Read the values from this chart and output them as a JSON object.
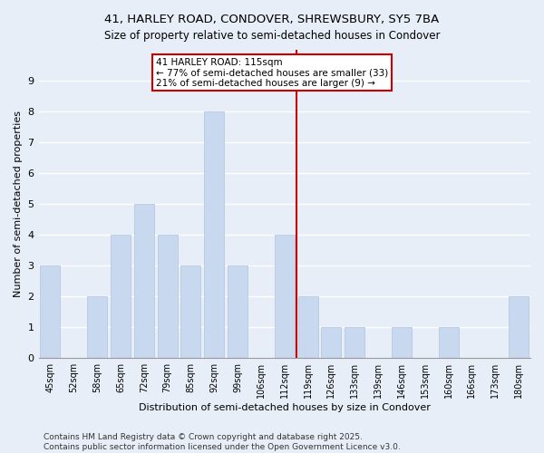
{
  "title_line1": "41, HARLEY ROAD, CONDOVER, SHREWSBURY, SY5 7BA",
  "title_line2": "Size of property relative to semi-detached houses in Condover",
  "xlabel": "Distribution of semi-detached houses by size in Condover",
  "ylabel": "Number of semi-detached properties",
  "categories": [
    "45sqm",
    "52sqm",
    "58sqm",
    "65sqm",
    "72sqm",
    "79sqm",
    "85sqm",
    "92sqm",
    "99sqm",
    "106sqm",
    "112sqm",
    "119sqm",
    "126sqm",
    "133sqm",
    "139sqm",
    "146sqm",
    "153sqm",
    "160sqm",
    "166sqm",
    "173sqm",
    "180sqm"
  ],
  "values": [
    3,
    0,
    2,
    4,
    5,
    4,
    3,
    8,
    3,
    0,
    4,
    2,
    1,
    1,
    0,
    1,
    0,
    1,
    0,
    0,
    2
  ],
  "bar_color": "#c8d8ee",
  "bar_edge_color": "#b0c4de",
  "vline_x_index": 10.5,
  "vline_color": "#cc0000",
  "annotation_text": "41 HARLEY ROAD: 115sqm\n← 77% of semi-detached houses are smaller (33)\n21% of semi-detached houses are larger (9) →",
  "annotation_box_color": "#cc0000",
  "annotation_text_color": "#000000",
  "ylim": [
    0,
    10
  ],
  "yticks": [
    0,
    1,
    2,
    3,
    4,
    5,
    6,
    7,
    8,
    9,
    10
  ],
  "background_color": "#e8eef8",
  "grid_color": "#ffffff",
  "footer": "Contains HM Land Registry data © Crown copyright and database right 2025.\nContains public sector information licensed under the Open Government Licence v3.0.",
  "title_fontsize": 9.5,
  "subtitle_fontsize": 8.5,
  "axis_label_fontsize": 8,
  "tick_fontsize": 7,
  "footer_fontsize": 6.5,
  "annotation_fontsize": 7.5
}
